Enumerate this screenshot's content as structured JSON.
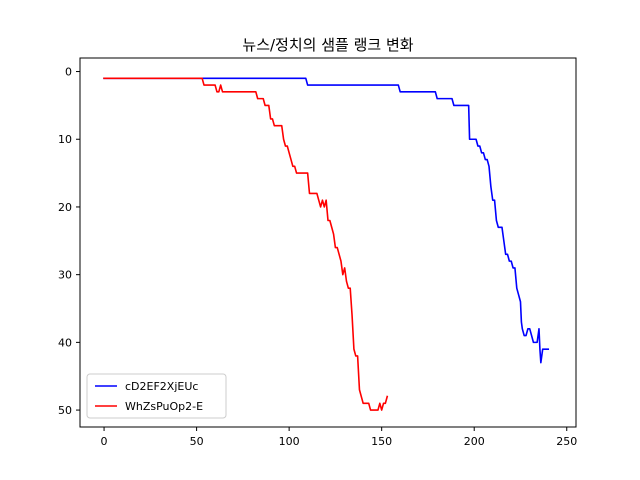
{
  "chart_data": {
    "type": "line",
    "title": "뉴스/정치의 샘플 랭크 변화",
    "xlabel": "",
    "ylabel": "",
    "xlim": [
      -13,
      255
    ],
    "ylim": [
      52.5,
      -2
    ],
    "y_inverted": true,
    "grid": false,
    "legend_position": "lower-left",
    "x_ticks": [
      0,
      50,
      100,
      150,
      200,
      250
    ],
    "y_ticks": [
      0,
      10,
      20,
      30,
      40,
      50
    ],
    "series": [
      {
        "name": "cD2EF2XjEUc",
        "color": "#0000ff",
        "points": [
          [
            0,
            1
          ],
          [
            109,
            1
          ],
          [
            110,
            2
          ],
          [
            159,
            2
          ],
          [
            160,
            3
          ],
          [
            179,
            3
          ],
          [
            180,
            4
          ],
          [
            188,
            4
          ],
          [
            189,
            5
          ],
          [
            197,
            5
          ],
          [
            197.5,
            10
          ],
          [
            201,
            10
          ],
          [
            202,
            11
          ],
          [
            203,
            11
          ],
          [
            204,
            12
          ],
          [
            205,
            12
          ],
          [
            206,
            13
          ],
          [
            207,
            13
          ],
          [
            208,
            14
          ],
          [
            209,
            17
          ],
          [
            210,
            19
          ],
          [
            211,
            19
          ],
          [
            212,
            22
          ],
          [
            213,
            23
          ],
          [
            215,
            23
          ],
          [
            216,
            25
          ],
          [
            217,
            27
          ],
          [
            218,
            27
          ],
          [
            219,
            28
          ],
          [
            220,
            28
          ],
          [
            221,
            29
          ],
          [
            222,
            29
          ],
          [
            223,
            32
          ],
          [
            224,
            33
          ],
          [
            225,
            34
          ],
          [
            225.5,
            37
          ],
          [
            226,
            38
          ],
          [
            227,
            39
          ],
          [
            228,
            39
          ],
          [
            229,
            38
          ],
          [
            230,
            38
          ],
          [
            231,
            39
          ],
          [
            232,
            40
          ],
          [
            234,
            40
          ],
          [
            235,
            38
          ],
          [
            235.5,
            41
          ],
          [
            236,
            43
          ],
          [
            237,
            41
          ],
          [
            240,
            41
          ]
        ]
      },
      {
        "name": "WhZsPuOp2-E",
        "color": "#ff0000",
        "points": [
          [
            0,
            1
          ],
          [
            53,
            1
          ],
          [
            54,
            2
          ],
          [
            60,
            2
          ],
          [
            61,
            3
          ],
          [
            62,
            3
          ],
          [
            63,
            2
          ],
          [
            64,
            3
          ],
          [
            82,
            3
          ],
          [
            83,
            4
          ],
          [
            86,
            4
          ],
          [
            87,
            5
          ],
          [
            89,
            5
          ],
          [
            90,
            7
          ],
          [
            91,
            7
          ],
          [
            92,
            8
          ],
          [
            96,
            8
          ],
          [
            97,
            10
          ],
          [
            98,
            11
          ],
          [
            99,
            11
          ],
          [
            100,
            12
          ],
          [
            101,
            13
          ],
          [
            102,
            14
          ],
          [
            103,
            14
          ],
          [
            104,
            15
          ],
          [
            110,
            15
          ],
          [
            111,
            18
          ],
          [
            115,
            18
          ],
          [
            116,
            19
          ],
          [
            117,
            20
          ],
          [
            118,
            19
          ],
          [
            119,
            20
          ],
          [
            120,
            19
          ],
          [
            121,
            22
          ],
          [
            122,
            22
          ],
          [
            123,
            23
          ],
          [
            124,
            24
          ],
          [
            125,
            26
          ],
          [
            126,
            26
          ],
          [
            127,
            27
          ],
          [
            128,
            28
          ],
          [
            129,
            30
          ],
          [
            130,
            29
          ],
          [
            131,
            31
          ],
          [
            132,
            32
          ],
          [
            133,
            32
          ],
          [
            134,
            36
          ],
          [
            135,
            41
          ],
          [
            136,
            42
          ],
          [
            137,
            42
          ],
          [
            138,
            47
          ],
          [
            139,
            48
          ],
          [
            140,
            49
          ],
          [
            143,
            49
          ],
          [
            144,
            50
          ],
          [
            148,
            50
          ],
          [
            149,
            49
          ],
          [
            150,
            50
          ],
          [
            151,
            49
          ],
          [
            152,
            49
          ],
          [
            153,
            48
          ]
        ]
      }
    ]
  }
}
